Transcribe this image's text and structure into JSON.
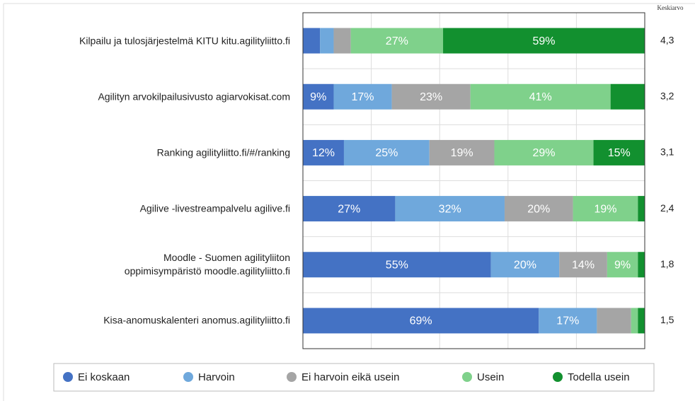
{
  "chart_data": {
    "type": "stacked_bar_horizontal",
    "categories": [
      "Kilpailu ja tulosjärjestelmä KITU kitu.agilityliitto.fi",
      "Agilityn arvokilpailusivusto agiarvokisat.com",
      "Ranking agilityliitto.fi/#/ranking",
      "Agilive -livestreampalvelu agilive.fi",
      "Moodle - Suomen agilityliiton\noppimisympäristö moodle.agilityliitto.fi",
      "Kisa-anomuskalenteri anomus.agilityliitto.fi"
    ],
    "series": [
      {
        "name": "Ei koskaan",
        "color": "#4472c4",
        "values": [
          5,
          9,
          12,
          27,
          55,
          69
        ],
        "value_labels": [
          null,
          "9%",
          "12%",
          "27%",
          "55%",
          "69%"
        ]
      },
      {
        "name": "Harvoin",
        "color": "#6fa8dc",
        "values": [
          4,
          17,
          25,
          32,
          20,
          17
        ],
        "value_labels": [
          null,
          "17%",
          "25%",
          "32%",
          "20%",
          "17%"
        ]
      },
      {
        "name": "Ei harvoin eikä usein",
        "color": "#a5a5a5",
        "values": [
          5,
          23,
          19,
          20,
          14,
          10
        ],
        "value_labels": [
          null,
          "23%",
          "19%",
          "20%",
          "14%",
          null
        ]
      },
      {
        "name": "Usein",
        "color": "#7fd18b",
        "values": [
          27,
          41,
          29,
          19,
          9,
          2
        ],
        "value_labels": [
          "27%",
          "41%",
          "29%",
          "19%",
          "9%",
          null
        ]
      },
      {
        "name": "Todella usein",
        "color": "#12902f",
        "values": [
          59,
          10,
          15,
          2,
          2,
          2
        ],
        "value_labels": [
          "59%",
          null,
          "15%",
          null,
          null,
          null
        ]
      }
    ],
    "average_title": "Keskiarvo",
    "averages": [
      "4,3",
      "3,2",
      "3,1",
      "2,4",
      "1,8",
      "1,5"
    ],
    "xlim": [
      0,
      100
    ],
    "xticks": [
      0,
      20,
      40,
      60,
      80,
      100
    ],
    "grid": true,
    "legend": "bottom"
  }
}
